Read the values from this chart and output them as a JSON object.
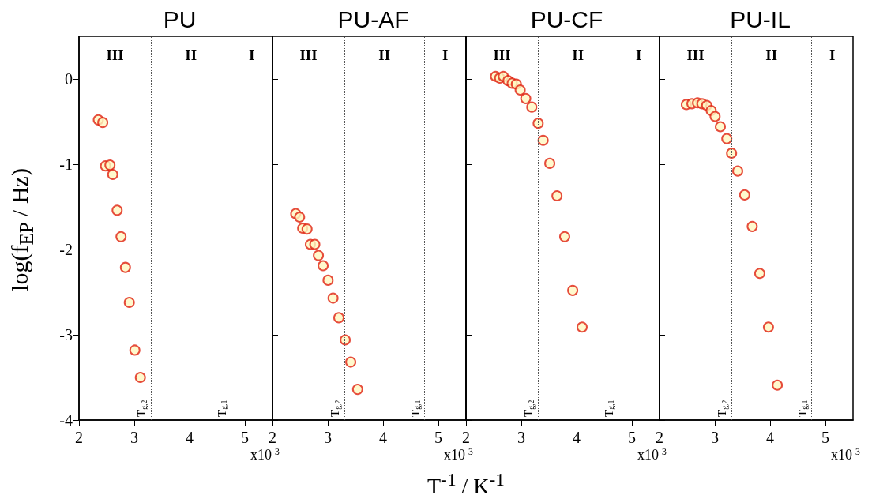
{
  "chart_data": [
    {
      "type": "scatter",
      "title": "PU",
      "ylabel": "log(f$_{EP}$ / Hz)",
      "marker": "circle",
      "grid": false,
      "xlim": [
        2,
        5.5
      ],
      "xticks": [
        2,
        3,
        4,
        5
      ],
      "ylim": [
        -4,
        0.5
      ],
      "yticks": [
        -4,
        -3,
        -2,
        -1,
        0
      ],
      "ref_lines": [
        {
          "axis": "x",
          "value": 3.3,
          "label": "T$_{g,2}$",
          "color": "#555555",
          "line_style": "dotted"
        },
        {
          "axis": "x",
          "value": 4.75,
          "label": "T$_{g,1}$",
          "color": "#555555",
          "line_style": "dotted"
        }
      ],
      "annotations": [
        "III",
        "II",
        "I",
        "x10$^{-3}$"
      ],
      "series": [
        {
          "color": "#e0200f",
          "x": [
            2.35,
            2.43,
            2.48,
            2.56,
            2.61,
            2.69,
            2.76,
            2.84,
            2.91,
            3.01,
            3.11
          ],
          "values": [
            -0.48,
            -0.51,
            -1.02,
            -1.01,
            -1.12,
            -1.54,
            -1.85,
            -2.21,
            -2.62,
            -3.18,
            -3.5
          ]
        }
      ]
    },
    {
      "type": "scatter",
      "title": "PU-AF",
      "xlabel": "T$^{-1}$ / K$^{-1}$",
      "marker": "circle",
      "grid": false,
      "tick_labels": "x",
      "xlim": [
        2,
        5.5
      ],
      "xticks": [
        2,
        3,
        4,
        5
      ],
      "ylim": [
        -4,
        0.5
      ],
      "yticks": [
        -4,
        -3,
        -2,
        -1,
        0
      ],
      "ref_lines": [
        {
          "axis": "x",
          "value": 3.3,
          "label": "T$_{g,2}$",
          "color": "#555555",
          "line_style": "dotted"
        },
        {
          "axis": "x",
          "value": 4.75,
          "label": "T$_{g,1}$",
          "color": "#555555",
          "line_style": "dotted"
        }
      ],
      "annotations": [
        "III",
        "II",
        "I",
        "x10$^{-3}$"
      ],
      "series": [
        {
          "color": "#e0200f",
          "x": [
            2.42,
            2.49,
            2.545,
            2.625,
            2.685,
            2.765,
            2.83,
            2.915,
            3.005,
            3.095,
            3.2,
            3.315,
            3.415,
            3.54
          ],
          "values": [
            -1.58,
            -1.62,
            -1.75,
            -1.76,
            -1.94,
            -1.94,
            -2.07,
            -2.19,
            -2.36,
            -2.57,
            -2.8,
            -3.06,
            -3.32,
            -3.64
          ]
        }
      ]
    },
    {
      "type": "scatter",
      "title": "PU-CF",
      "marker": "circle",
      "grid": false,
      "tick_labels": "x",
      "xlim": [
        2,
        5.5
      ],
      "xticks": [
        2,
        3,
        4,
        5
      ],
      "ylim": [
        -4,
        0.5
      ],
      "yticks": [
        -4,
        -3,
        -2,
        -1,
        0
      ],
      "ref_lines": [
        {
          "axis": "x",
          "value": 3.3,
          "label": "T$_{g,2}$",
          "color": "#555555",
          "line_style": "dotted"
        },
        {
          "axis": "x",
          "value": 4.75,
          "label": "T$_{g,1}$",
          "color": "#555555",
          "line_style": "dotted"
        }
      ],
      "annotations": [
        "III",
        "II",
        "I",
        "x10$^{-3}$"
      ],
      "series": [
        {
          "color": "#e0200f",
          "x": [
            2.535,
            2.61,
            2.675,
            2.76,
            2.835,
            2.91,
            2.98,
            3.08,
            3.19,
            3.305,
            3.395,
            3.515,
            3.645,
            3.785,
            3.93,
            4.1
          ],
          "values": [
            0.03,
            0.01,
            0.03,
            -0.02,
            -0.05,
            -0.06,
            -0.13,
            -0.23,
            -0.33,
            -0.52,
            -0.72,
            -0.99,
            -1.37,
            -1.85,
            -2.48,
            -2.91
          ]
        }
      ]
    },
    {
      "type": "scatter",
      "title": "PU-IL",
      "marker": "circle",
      "grid": false,
      "tick_labels": "x",
      "xlim": [
        2,
        5.5
      ],
      "xticks": [
        2,
        3,
        4,
        5
      ],
      "ylim": [
        -4,
        0.5
      ],
      "yticks": [
        -4,
        -3,
        -2,
        -1,
        0
      ],
      "ref_lines": [
        {
          "axis": "x",
          "value": 3.3,
          "label": "T$_{g,2}$",
          "color": "#555555",
          "line_style": "dotted"
        },
        {
          "axis": "x",
          "value": 4.75,
          "label": "T$_{g,1}$",
          "color": "#555555",
          "line_style": "dotted"
        }
      ],
      "annotations": [
        "III",
        "II",
        "I",
        "x10$^{-3}$"
      ],
      "series": [
        {
          "color": "#e0200f",
          "x": [
            2.485,
            2.586,
            2.687,
            2.768,
            2.854,
            2.934,
            3.005,
            3.1,
            3.217,
            3.303,
            3.414,
            3.54,
            3.677,
            3.813,
            3.97,
            4.13
          ],
          "values": [
            -0.3,
            -0.29,
            -0.28,
            -0.29,
            -0.31,
            -0.37,
            -0.44,
            -0.56,
            -0.7,
            -0.87,
            -1.08,
            -1.36,
            -1.73,
            -2.28,
            -2.91,
            -3.59
          ]
        }
      ]
    }
  ]
}
